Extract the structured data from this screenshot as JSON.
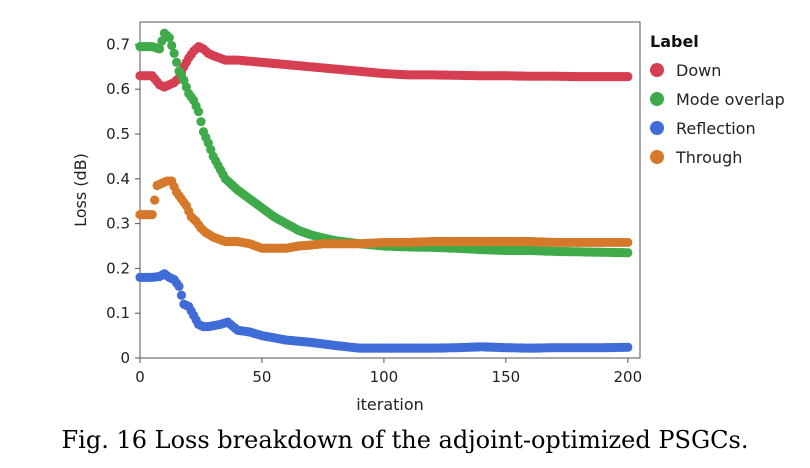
{
  "caption": "Fig. 16 Loss breakdown of the adjoint-optimized PSGCs.",
  "chart_data": {
    "type": "scatter",
    "title": "",
    "xlabel": "iteration",
    "ylabel": "Loss (dB)",
    "xlim": [
      0,
      205
    ],
    "ylim": [
      0,
      0.75
    ],
    "xticks": [
      0,
      50,
      100,
      150,
      200
    ],
    "yticks": [
      0,
      0.1,
      0.2,
      0.3,
      0.4,
      0.5,
      0.6,
      0.7
    ],
    "xtick_labels": [
      "0",
      "50",
      "100",
      "150",
      "200"
    ],
    "ytick_labels": [
      "0",
      "0.1",
      "0.2",
      "0.3",
      "0.4",
      "0.5",
      "0.6",
      "0.7"
    ],
    "grid": false,
    "legend": {
      "title": "Label",
      "position": "right"
    },
    "series": [
      {
        "name": "Down",
        "color": "#d63e52",
        "x": [
          0,
          5,
          8,
          10,
          12,
          14,
          16,
          18,
          20,
          22,
          24,
          26,
          28,
          30,
          35,
          40,
          50,
          60,
          70,
          80,
          90,
          100,
          110,
          120,
          130,
          140,
          150,
          160,
          170,
          180,
          190,
          200
        ],
        "y": [
          0.63,
          0.63,
          0.61,
          0.605,
          0.61,
          0.615,
          0.625,
          0.65,
          0.67,
          0.685,
          0.695,
          0.69,
          0.68,
          0.675,
          0.665,
          0.665,
          0.66,
          0.655,
          0.65,
          0.645,
          0.64,
          0.635,
          0.632,
          0.632,
          0.631,
          0.63,
          0.63,
          0.629,
          0.629,
          0.628,
          0.628,
          0.628
        ]
      },
      {
        "name": "Mode overlap",
        "color": "#3faa4a",
        "x": [
          0,
          5,
          8,
          10,
          12,
          14,
          16,
          18,
          20,
          22,
          24,
          26,
          28,
          30,
          32,
          35,
          40,
          45,
          50,
          55,
          60,
          65,
          70,
          75,
          80,
          90,
          100,
          110,
          120,
          130,
          140,
          150,
          160,
          170,
          180,
          190,
          200
        ],
        "y": [
          0.695,
          0.695,
          0.69,
          0.725,
          0.715,
          0.68,
          0.64,
          0.62,
          0.59,
          0.575,
          0.55,
          0.505,
          0.48,
          0.45,
          0.43,
          0.4,
          0.375,
          0.355,
          0.335,
          0.315,
          0.3,
          0.285,
          0.275,
          0.268,
          0.262,
          0.255,
          0.25,
          0.248,
          0.247,
          0.245,
          0.242,
          0.24,
          0.24,
          0.238,
          0.237,
          0.236,
          0.235
        ]
      },
      {
        "name": "Reflection",
        "color": "#3f6cd6",
        "x": [
          0,
          5,
          8,
          10,
          12,
          14,
          16,
          18,
          20,
          22,
          24,
          26,
          28,
          30,
          33,
          36,
          40,
          45,
          50,
          55,
          60,
          70,
          80,
          90,
          100,
          110,
          120,
          130,
          140,
          150,
          160,
          170,
          180,
          190,
          200
        ],
        "y": [
          0.18,
          0.18,
          0.182,
          0.188,
          0.18,
          0.175,
          0.16,
          0.12,
          0.115,
          0.095,
          0.075,
          0.07,
          0.07,
          0.072,
          0.075,
          0.08,
          0.062,
          0.058,
          0.05,
          0.045,
          0.04,
          0.035,
          0.028,
          0.022,
          0.022,
          0.022,
          0.022,
          0.023,
          0.025,
          0.023,
          0.022,
          0.023,
          0.023,
          0.023,
          0.024
        ]
      },
      {
        "name": "Through",
        "color": "#d6782a",
        "x": [
          0,
          5,
          7,
          9,
          11,
          13,
          15,
          17,
          19,
          21,
          23,
          25,
          27,
          30,
          35,
          40,
          45,
          50,
          55,
          60,
          65,
          70,
          75,
          80,
          90,
          100,
          110,
          120,
          130,
          140,
          150,
          160,
          170,
          180,
          190,
          200
        ],
        "y": [
          0.32,
          0.32,
          0.385,
          0.39,
          0.395,
          0.395,
          0.37,
          0.355,
          0.34,
          0.315,
          0.305,
          0.29,
          0.28,
          0.27,
          0.26,
          0.26,
          0.255,
          0.245,
          0.245,
          0.245,
          0.25,
          0.252,
          0.255,
          0.255,
          0.255,
          0.258,
          0.258,
          0.26,
          0.26,
          0.26,
          0.26,
          0.26,
          0.258,
          0.258,
          0.258,
          0.258
        ]
      }
    ]
  }
}
